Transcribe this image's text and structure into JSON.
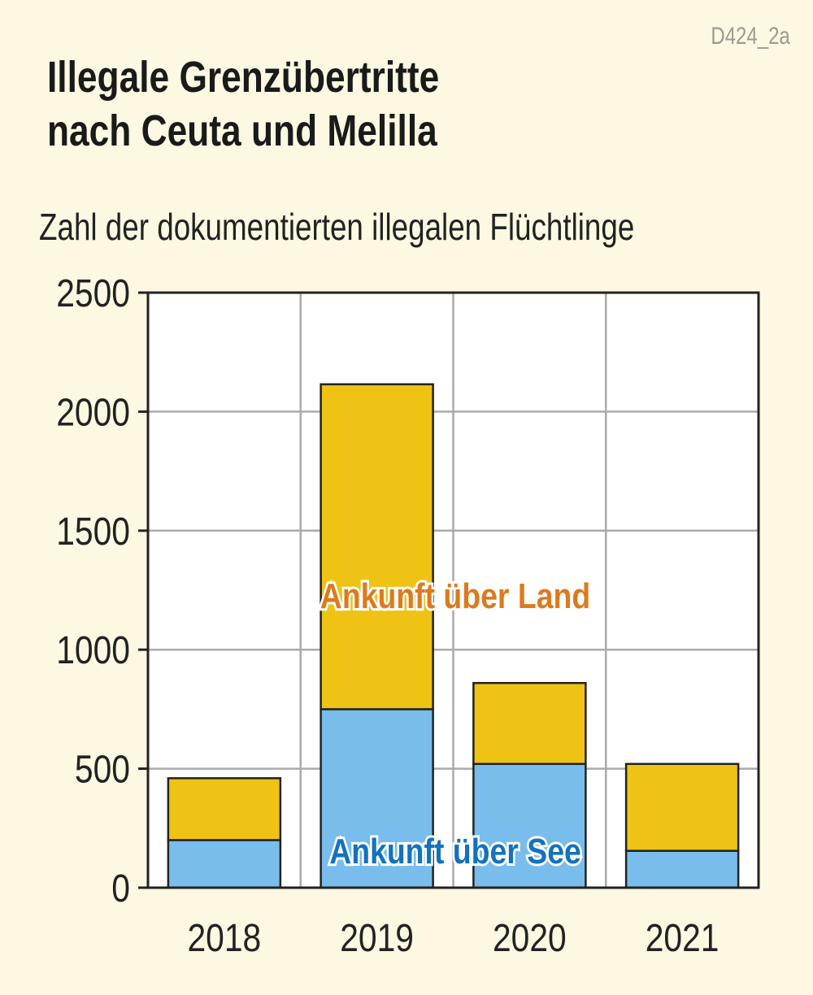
{
  "code": "D424_2a",
  "chart_data": {
    "type": "bar",
    "stacked": true,
    "title": "Illegale Grenzübertritte nach Ceuta und Melilla",
    "title_lines": [
      "Illegale Grenzübertritte",
      "nach Ceuta und Melilla"
    ],
    "subtitle": "Zahl der dokumentierten illegalen Flüchtlinge",
    "categories": [
      "2018",
      "2019",
      "2020",
      "2021"
    ],
    "series": [
      {
        "name": "Ankunft über See",
        "values": [
          200,
          750,
          520,
          155
        ],
        "color": "#78bdec",
        "label_color": "#1272c0"
      },
      {
        "name": "Ankunft über Land",
        "values": [
          260,
          1365,
          340,
          365
        ],
        "color": "#efc313",
        "label_color": "#dd7a1e"
      }
    ],
    "ylim": [
      0,
      2500
    ],
    "yticks": [
      "0",
      "500",
      "1000",
      "1500",
      "2000",
      "2500"
    ],
    "grid": true,
    "plot_background": "#ffffff",
    "page_background": "#fdf8e1"
  }
}
